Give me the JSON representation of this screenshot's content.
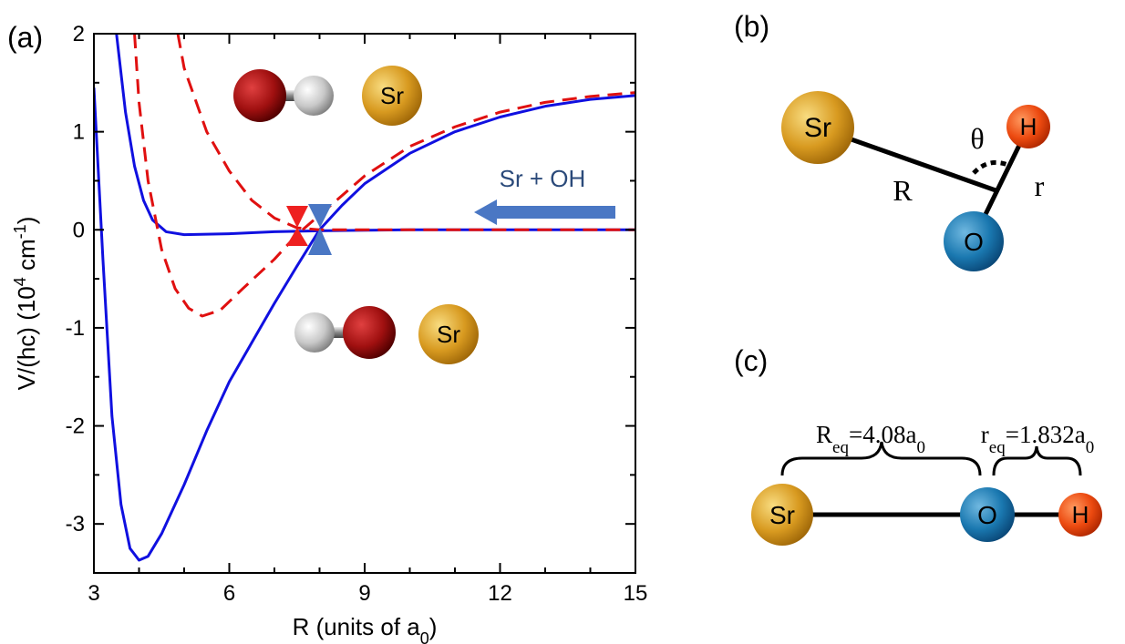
{
  "chart_data": {
    "type": "line",
    "panel_label": "(a)",
    "xlabel": [
      "R  (units of a",
      "0",
      ")"
    ],
    "ylabel": [
      "V/(hc) (10",
      "4",
      " cm",
      "-1",
      ")"
    ],
    "xlim": [
      3,
      15
    ],
    "ylim": [
      -3.5,
      2
    ],
    "xticks": [
      3,
      6,
      9,
      12,
      15
    ],
    "yticks": [
      -3,
      -2,
      -1,
      0,
      1,
      2
    ],
    "xminorticks": [
      4,
      5,
      7,
      8,
      10,
      11,
      13,
      14
    ],
    "yminorticks": [
      -3.5,
      -2.5,
      -1.5,
      -0.5,
      0.5,
      1.5
    ],
    "series": [
      {
        "color": "#1010e0",
        "style": "solid",
        "x": [
          3.0,
          3.2,
          3.4,
          3.6,
          3.8,
          4.0,
          4.2,
          4.5,
          5,
          5.5,
          6,
          6.5,
          7,
          7.5,
          8,
          8.5,
          9,
          10,
          11,
          12,
          13,
          14,
          15
        ],
        "values": [
          1.45,
          -0.3,
          -1.9,
          -2.8,
          -3.25,
          -3.37,
          -3.33,
          -3.1,
          -2.6,
          -2.05,
          -1.55,
          -1.15,
          -0.75,
          -0.37,
          0.0,
          0.25,
          0.47,
          0.78,
          1.0,
          1.15,
          1.26,
          1.33,
          1.37
        ]
      },
      {
        "color": "#1010e0",
        "style": "solid",
        "x": [
          3.5,
          3.7,
          3.9,
          4.1,
          4.3,
          4.6,
          5,
          6,
          7,
          8,
          10,
          12,
          15
        ],
        "values": [
          2.0,
          1.2,
          0.65,
          0.3,
          0.1,
          -0.02,
          -0.05,
          -0.04,
          -0.02,
          -0.01,
          0,
          0,
          0
        ]
      },
      {
        "color": "#e01010",
        "style": "dashed",
        "x": [
          3.9,
          4.0,
          4.2,
          4.5,
          4.8,
          5.1,
          5.4,
          5.8,
          6.3,
          7,
          7.5,
          8,
          9,
          10,
          11,
          12,
          13,
          14,
          15
        ],
        "values": [
          2.0,
          1.3,
          0.5,
          -0.2,
          -0.6,
          -0.8,
          -0.88,
          -0.82,
          -0.6,
          -0.3,
          -0.05,
          0.15,
          0.55,
          0.85,
          1.05,
          1.2,
          1.3,
          1.36,
          1.4
        ]
      },
      {
        "color": "#e01010",
        "style": "dashed",
        "x": [
          4.86,
          5.0,
          5.5,
          6,
          6.5,
          7,
          7.5,
          8,
          10,
          15
        ],
        "values": [
          2.0,
          1.65,
          1.0,
          0.6,
          0.3,
          0.12,
          0.02,
          0.0,
          0,
          0
        ]
      }
    ],
    "annotations": {
      "arrow_text": "Sr + OH",
      "atom_top": "Sr",
      "atom_bottom": "Sr"
    }
  },
  "panel_b": {
    "label": "(b)",
    "atoms": [
      "Sr",
      "H",
      "O"
    ],
    "angle": "θ",
    "R": "R",
    "r": "r"
  },
  "panel_c": {
    "label": "(c)",
    "atoms": [
      "Sr",
      "O",
      "H"
    ],
    "R_eq": [
      "R",
      "eq",
      "=4.08a",
      "0"
    ],
    "r_eq": [
      "r",
      "eq",
      "=1.832a",
      "0"
    ]
  }
}
